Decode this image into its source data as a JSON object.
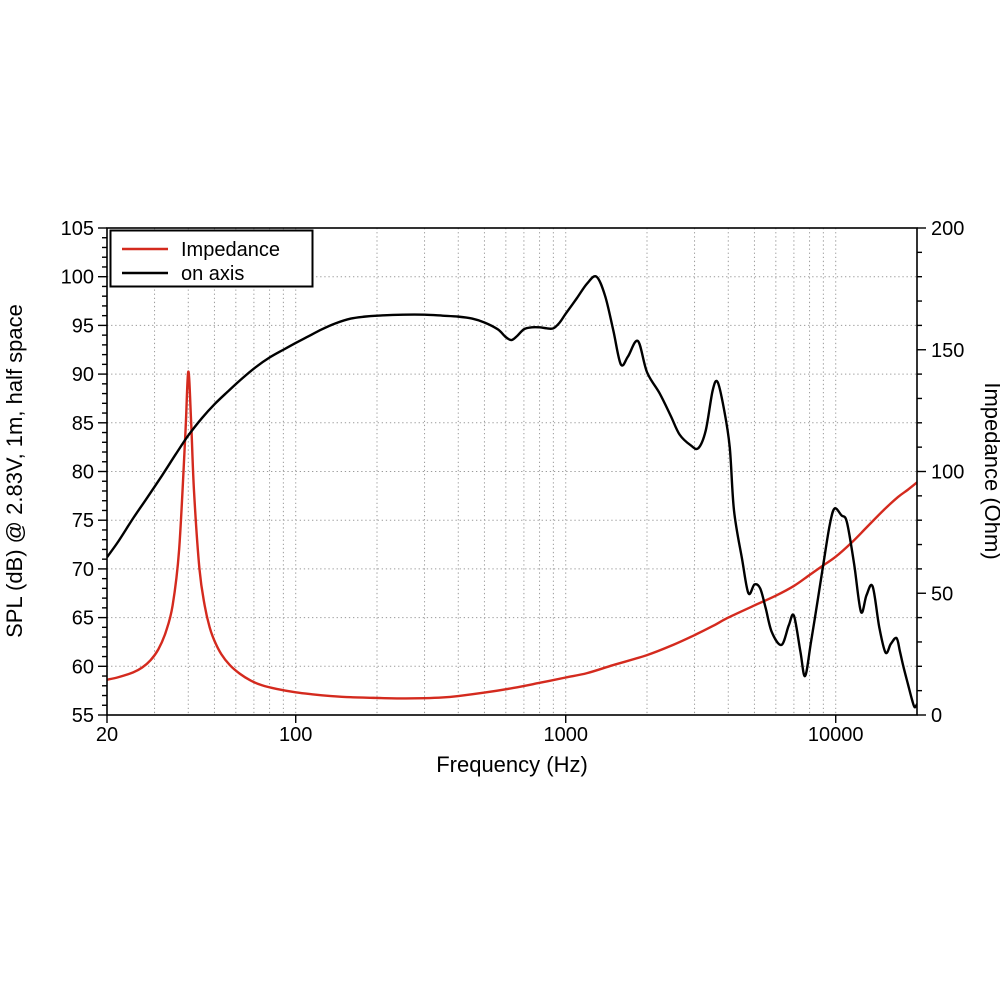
{
  "chart_data": {
    "type": "line",
    "title": "",
    "xlabel": "Frequency (Hz)",
    "ylabel_left": "SPL (dB) @ 2.83V, 1m, half space",
    "ylabel_right": "Impedance (Ohm)",
    "x_scale": "log",
    "x_range": [
      20,
      20000
    ],
    "y_left_range": [
      55,
      105
    ],
    "y_left_major_step": 5,
    "y_left_minor_step": 1,
    "y_right_range": [
      0,
      200
    ],
    "y_right_major_step": 50,
    "y_right_minor_step": 10,
    "x_tick_values": [
      20,
      100,
      1000,
      10000
    ],
    "x_tick_labels": [
      "20",
      "100",
      "1000",
      "10000"
    ],
    "grid": "dotted",
    "colors": {
      "grid": "#9a9a9a",
      "frame": "#000000",
      "background": "#ffffff",
      "impedance": "#d42a1e",
      "on_axis": "#000000"
    },
    "legend": {
      "position": "top-left",
      "entries": [
        {
          "label": "Impedance",
          "color": "#d42a1e"
        },
        {
          "label": "on axis",
          "color": "#000000"
        }
      ]
    },
    "series": [
      {
        "name": "Impedance",
        "axis": "right",
        "unit": "Ohm",
        "color": "#d42a1e",
        "points": [
          [
            20,
            14.5
          ],
          [
            22,
            15.5
          ],
          [
            25,
            17.5
          ],
          [
            27,
            19.5
          ],
          [
            29,
            22.5
          ],
          [
            31,
            27
          ],
          [
            33,
            34
          ],
          [
            35,
            45
          ],
          [
            37,
            68
          ],
          [
            39,
            115
          ],
          [
            40,
            141
          ],
          [
            41,
            120
          ],
          [
            42,
            92
          ],
          [
            44,
            60
          ],
          [
            46,
            45
          ],
          [
            48,
            36
          ],
          [
            50,
            30.5
          ],
          [
            53,
            25
          ],
          [
            57,
            20.5
          ],
          [
            62,
            17
          ],
          [
            68,
            14.2
          ],
          [
            75,
            12.2
          ],
          [
            85,
            10.7
          ],
          [
            100,
            9.3
          ],
          [
            115,
            8.5
          ],
          [
            135,
            7.8
          ],
          [
            160,
            7.3
          ],
          [
            200,
            7.0
          ],
          [
            250,
            6.8
          ],
          [
            300,
            6.9
          ],
          [
            350,
            7.2
          ],
          [
            400,
            7.8
          ],
          [
            500,
            9.2
          ],
          [
            640,
            11.1
          ],
          [
            800,
            13.2
          ],
          [
            1000,
            15.4
          ],
          [
            1200,
            17.2
          ],
          [
            1500,
            20.5
          ],
          [
            2000,
            24.6
          ],
          [
            2500,
            28.8
          ],
          [
            3000,
            32.8
          ],
          [
            3500,
            36.5
          ],
          [
            4000,
            40
          ],
          [
            5000,
            45
          ],
          [
            6000,
            49
          ],
          [
            7000,
            53
          ],
          [
            8000,
            57.5
          ],
          [
            9000,
            61.5
          ],
          [
            10000,
            65
          ],
          [
            11500,
            71
          ],
          [
            13000,
            77
          ],
          [
            15000,
            84
          ],
          [
            17000,
            89.5
          ],
          [
            18500,
            92.5
          ],
          [
            20000,
            95.5
          ]
        ]
      },
      {
        "name": "on axis",
        "axis": "left",
        "unit": "dB",
        "color": "#000000",
        "points": [
          [
            20,
            71.2
          ],
          [
            22,
            72.8
          ],
          [
            25,
            75.2
          ],
          [
            28,
            77.2
          ],
          [
            32,
            79.6
          ],
          [
            36,
            81.8
          ],
          [
            40,
            83.7
          ],
          [
            45,
            85.5
          ],
          [
            50,
            86.9
          ],
          [
            56,
            88.2
          ],
          [
            63,
            89.5
          ],
          [
            71,
            90.7
          ],
          [
            80,
            91.7
          ],
          [
            90,
            92.5
          ],
          [
            100,
            93.2
          ],
          [
            110,
            93.8
          ],
          [
            125,
            94.6
          ],
          [
            140,
            95.2
          ],
          [
            160,
            95.7
          ],
          [
            180,
            95.9
          ],
          [
            200,
            96.0
          ],
          [
            250,
            96.1
          ],
          [
            300,
            96.1
          ],
          [
            350,
            96.0
          ],
          [
            400,
            95.9
          ],
          [
            450,
            95.7
          ],
          [
            500,
            95.3
          ],
          [
            560,
            94.6
          ],
          [
            600,
            93.8
          ],
          [
            630,
            93.5
          ],
          [
            660,
            93.9
          ],
          [
            700,
            94.6
          ],
          [
            750,
            94.8
          ],
          [
            800,
            94.8
          ],
          [
            850,
            94.7
          ],
          [
            900,
            94.7
          ],
          [
            950,
            95.3
          ],
          [
            1000,
            96.2
          ],
          [
            1100,
            97.8
          ],
          [
            1200,
            99.3
          ],
          [
            1300,
            100.0
          ],
          [
            1400,
            98.0
          ],
          [
            1500,
            94.5
          ],
          [
            1600,
            91.0
          ],
          [
            1700,
            91.8
          ],
          [
            1850,
            93.4
          ],
          [
            2000,
            90.2
          ],
          [
            2230,
            88.0
          ],
          [
            2450,
            85.7
          ],
          [
            2640,
            83.8
          ],
          [
            2900,
            82.7
          ],
          [
            3100,
            82.4
          ],
          [
            3300,
            84.2
          ],
          [
            3500,
            88.3
          ],
          [
            3650,
            89.2
          ],
          [
            3850,
            86.5
          ],
          [
            4050,
            82.5
          ],
          [
            4200,
            76.0
          ],
          [
            4500,
            71.0
          ],
          [
            4750,
            67.5
          ],
          [
            5000,
            68.4
          ],
          [
            5250,
            68.0
          ],
          [
            5500,
            66.0
          ],
          [
            5800,
            63.5
          ],
          [
            6300,
            62.2
          ],
          [
            6700,
            64.2
          ],
          [
            7000,
            65.2
          ],
          [
            7400,
            61.5
          ],
          [
            7700,
            59.0
          ],
          [
            8100,
            62.5
          ],
          [
            8600,
            67.0
          ],
          [
            9000,
            70.5
          ],
          [
            9500,
            74.5
          ],
          [
            9900,
            76.2
          ],
          [
            10500,
            75.5
          ],
          [
            11000,
            74.8
          ],
          [
            11700,
            70.5
          ],
          [
            12400,
            65.6
          ],
          [
            13000,
            67.3
          ],
          [
            13700,
            68.2
          ],
          [
            14500,
            64.0
          ],
          [
            15300,
            61.4
          ],
          [
            16000,
            62.3
          ],
          [
            16800,
            62.9
          ],
          [
            17300,
            61.5
          ],
          [
            17800,
            60.0
          ],
          [
            18500,
            58.2
          ],
          [
            19200,
            56.5
          ],
          [
            19600,
            55.8
          ],
          [
            20000,
            56.1
          ]
        ]
      }
    ]
  }
}
